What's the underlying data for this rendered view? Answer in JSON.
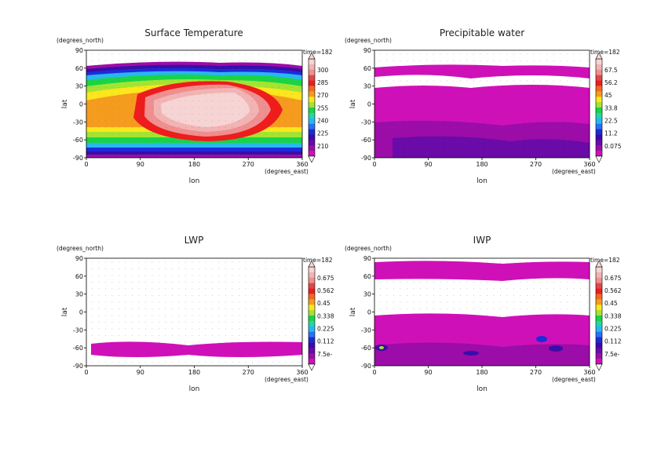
{
  "palette": [
    "#f7d4d4",
    "#f2b3b3",
    "#ef8f8f",
    "#e04848",
    "#ee1c1c",
    "#f06a22",
    "#f59c1e",
    "#fce61c",
    "#a3e432",
    "#1ad446",
    "#26d6a8",
    "#29b7f2",
    "#2474f2",
    "#1c2cd9",
    "#3b0ca8",
    "#6a0aa8",
    "#9c0ca8",
    "#cf10b8"
  ],
  "charts": [
    {
      "title": "Surface Temperature",
      "ylabel_unit": "(degrees_north)",
      "xlabel": "lon",
      "ylabel": "lat",
      "xunit": "(degrees_east)",
      "time_label": "time=182",
      "xticks": [
        "0",
        "90",
        "180",
        "270",
        "360"
      ],
      "yticks": [
        "90",
        "60",
        "30",
        "0",
        "-30",
        "-60",
        "-90"
      ],
      "cbar_ticks": [
        "300",
        "285",
        "270",
        "255",
        "240",
        "225",
        "210"
      ]
    },
    {
      "title": "Precipitable water",
      "ylabel_unit": "(degrees_north)",
      "xlabel": "lon",
      "ylabel": "lat",
      "xunit": "(degrees_east)",
      "time_label": "time=182",
      "xticks": [
        "0",
        "90",
        "180",
        "270",
        "360"
      ],
      "yticks": [
        "90",
        "60",
        "30",
        "0",
        "-30",
        "-60",
        "-90"
      ],
      "cbar_ticks": [
        "67.5",
        "56.2",
        "45",
        "33.8",
        "22.5",
        "11.2",
        "0.075"
      ]
    },
    {
      "title": "LWP",
      "ylabel_unit": "(degrees_north)",
      "xlabel": "lon",
      "ylabel": "lat",
      "xunit": "(degrees_east)",
      "time_label": "time=182",
      "xticks": [
        "0",
        "90",
        "180",
        "270",
        "360"
      ],
      "yticks": [
        "90",
        "60",
        "30",
        "0",
        "-30",
        "-60",
        "-90"
      ],
      "cbar_ticks": [
        "0.675",
        "0.562",
        "0.45",
        "0.338",
        "0.225",
        "0.112",
        "7.5e-"
      ]
    },
    {
      "title": "IWP",
      "ylabel_unit": "(degrees_north)",
      "xlabel": "lon",
      "ylabel": "lat",
      "xunit": "(degrees_east)",
      "time_label": "time=182",
      "xticks": [
        "0",
        "90",
        "180",
        "270",
        "360"
      ],
      "yticks": [
        "90",
        "60",
        "30",
        "0",
        "-30",
        "-60",
        "-90"
      ],
      "cbar_ticks": [
        "0.675",
        "0.562",
        "0.45",
        "0.338",
        "0.225",
        "0.112",
        "7.5e-"
      ]
    }
  ],
  "chart_data": [
    {
      "type": "heatmap",
      "title": "Surface Temperature",
      "xlabel": "lon",
      "ylabel": "lat",
      "xlim": [
        0,
        360
      ],
      "ylim": [
        -90,
        90
      ],
      "colorbar_levels": [
        210,
        225,
        240,
        255,
        270,
        285,
        300
      ],
      "features": {
        "max_region_lon": [
          130,
          270
        ],
        "max_region_lat": [
          -40,
          40
        ],
        "max_value_approx": 305,
        "polar_value_approx": 205
      }
    },
    {
      "type": "heatmap",
      "title": "Precipitable water",
      "xlabel": "lon",
      "ylabel": "lat",
      "xlim": [
        0,
        360
      ],
      "ylim": [
        -90,
        90
      ],
      "colorbar_levels": [
        0.075,
        11.2,
        22.5,
        33.8,
        45,
        56.2,
        67.5
      ],
      "features": {
        "nonzero_band_lat": [
          -90,
          70
        ],
        "empty_band_lat": [
          20,
          60
        ]
      }
    },
    {
      "type": "heatmap",
      "title": "LWP",
      "xlabel": "lon",
      "ylabel": "lat",
      "xlim": [
        0,
        360
      ],
      "ylim": [
        -90,
        90
      ],
      "colorbar_levels": [
        7.5e-05,
        0.112,
        0.225,
        0.338,
        0.45,
        0.562,
        0.675
      ],
      "features": {
        "nonzero_band_lat": [
          -75,
          -50
        ]
      }
    },
    {
      "type": "heatmap",
      "title": "IWP",
      "xlabel": "lon",
      "ylabel": "lat",
      "xlim": [
        0,
        360
      ],
      "ylim": [
        -90,
        90
      ],
      "colorbar_levels": [
        7.5e-05,
        0.112,
        0.225,
        0.338,
        0.45,
        0.562,
        0.675
      ],
      "features": {
        "nonzero_bands_lat": [
          [
            55,
            90
          ],
          [
            -90,
            0
          ]
        ]
      }
    }
  ]
}
